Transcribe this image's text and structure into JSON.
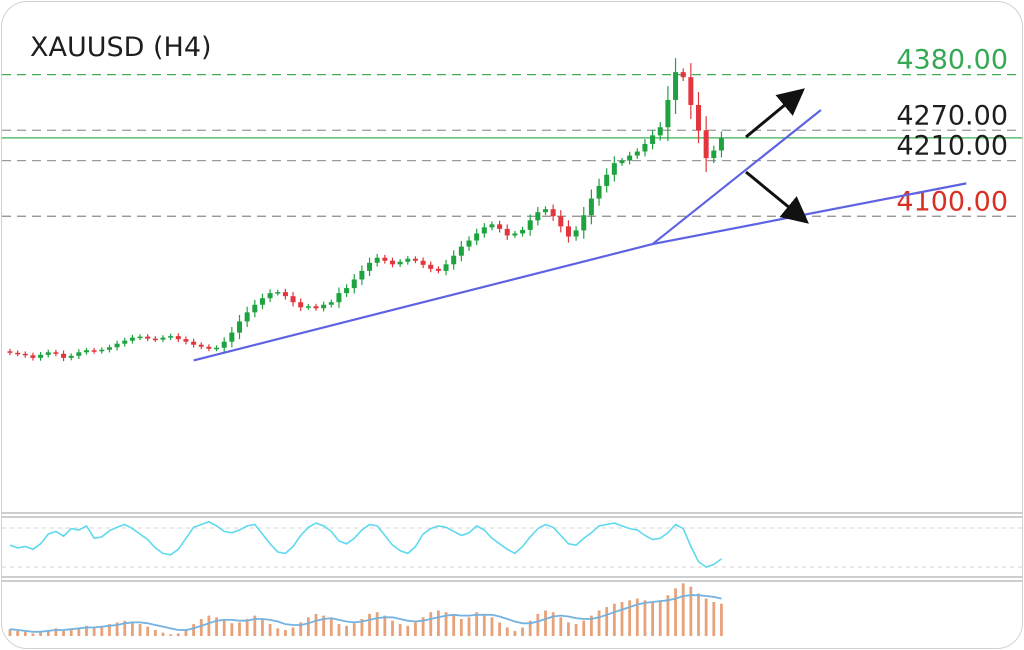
{
  "chart_data": {
    "type": "candlestick",
    "title": "XAUUSD (H4)",
    "xlabel": "",
    "ylabel": "",
    "ylim": [
      3535,
      4405
    ],
    "grid": false,
    "colors": {
      "up_candle": "#1fa341",
      "down_candle": "#e2353d",
      "trendline": "#5d63e3",
      "resistance": "#3fae55",
      "neutral_level": "#9a9a9a",
      "support": "#8b8b8b",
      "oscillator": "#5ed9ee",
      "histogram": "#e8a27a",
      "signal_line": "#74b2e0"
    },
    "levels": [
      {
        "value": 4380,
        "label": "4380.00",
        "color": "#34a853",
        "style": "dashed"
      },
      {
        "value": 4270,
        "label": "4270.00",
        "color": "#1e1e1e",
        "style": "dashed"
      },
      {
        "value": 4255,
        "label": "",
        "color": "#3fae55",
        "style": "solid"
      },
      {
        "value": 4210,
        "label": "4210.00",
        "color": "#1e1e1e",
        "style": "dashed"
      },
      {
        "value": 4100,
        "label": "4100.00",
        "color": "#d93025",
        "style": "dashed"
      }
    ],
    "trendlines": [
      {
        "from": [
          24,
          3815
        ],
        "to": [
          84,
          4045
        ]
      },
      {
        "from": [
          84,
          4045
        ],
        "to": [
          125,
          4165
        ]
      },
      {
        "from": [
          84,
          4045
        ],
        "to": [
          106,
          4310
        ]
      }
    ],
    "close": [
      3830,
      3828,
      3825,
      3820,
      3826,
      3831,
      3828,
      3820,
      3824,
      3831,
      3835,
      3833,
      3836,
      3841,
      3848,
      3854,
      3860,
      3862,
      3858,
      3856,
      3860,
      3863,
      3857,
      3852,
      3846,
      3842,
      3838,
      3840,
      3852,
      3870,
      3892,
      3910,
      3925,
      3938,
      3948,
      3950,
      3942,
      3930,
      3920,
      3922,
      3918,
      3925,
      3930,
      3948,
      3958,
      3975,
      3992,
      4008,
      4018,
      4012,
      4005,
      4010,
      4016,
      4012,
      4004,
      3996,
      3992,
      4005,
      4022,
      4040,
      4052,
      4066,
      4078,
      4084,
      4075,
      4062,
      4066,
      4073,
      4092,
      4108,
      4114,
      4100,
      4080,
      4060,
      4072,
      4102,
      4135,
      4160,
      4182,
      4205,
      4210,
      4220,
      4228,
      4243,
      4260,
      4276,
      4330,
      4385,
      4375,
      4320,
      4270,
      4215,
      4230,
      4254
    ],
    "opens_note": "each candle opens at the previous close",
    "oscillator": {
      "type": "line",
      "values": [
        42,
        38,
        40,
        36,
        44,
        58,
        62,
        55,
        66,
        64,
        70,
        52,
        54,
        63,
        68,
        72,
        66,
        58,
        50,
        38,
        30,
        28,
        36,
        52,
        68,
        72,
        76,
        70,
        62,
        60,
        64,
        70,
        72,
        58,
        44,
        32,
        30,
        40,
        56,
        68,
        74,
        70,
        62,
        48,
        44,
        52,
        64,
        72,
        70,
        56,
        42,
        34,
        30,
        40,
        58,
        66,
        70,
        68,
        62,
        56,
        60,
        70,
        64,
        52,
        44,
        36,
        30,
        40,
        54,
        66,
        72,
        68,
        56,
        44,
        42,
        52,
        60,
        70,
        72,
        74,
        70,
        66,
        64,
        56,
        50,
        52,
        60,
        72,
        66,
        40,
        18,
        10,
        14,
        22
      ]
    },
    "histogram": {
      "type": "bar",
      "values": [
        8,
        6,
        5,
        3,
        4,
        7,
        9,
        6,
        8,
        10,
        12,
        9,
        11,
        14,
        16,
        18,
        17,
        14,
        11,
        7,
        4,
        2,
        3,
        8,
        14,
        20,
        24,
        22,
        18,
        15,
        16,
        20,
        24,
        20,
        14,
        9,
        7,
        10,
        16,
        22,
        26,
        24,
        20,
        14,
        12,
        15,
        20,
        26,
        28,
        24,
        18,
        14,
        12,
        16,
        22,
        28,
        30,
        28,
        24,
        20,
        22,
        28,
        26,
        22,
        16,
        10,
        6,
        10,
        18,
        26,
        30,
        28,
        22,
        16,
        14,
        18,
        24,
        30,
        34,
        38,
        40,
        42,
        44,
        42,
        40,
        42,
        48,
        56,
        62,
        58,
        50,
        44,
        40,
        38
      ],
      "signal": [
        8,
        7,
        6,
        5,
        5,
        6,
        7,
        7,
        8,
        9,
        10,
        10,
        11,
        12,
        13,
        15,
        16,
        16,
        15,
        13,
        11,
        9,
        7,
        7,
        9,
        12,
        15,
        18,
        19,
        19,
        18,
        18,
        20,
        20,
        19,
        17,
        14,
        13,
        13,
        15,
        18,
        20,
        21,
        19,
        17,
        16,
        17,
        19,
        21,
        22,
        22,
        20,
        18,
        17,
        18,
        20,
        22,
        24,
        25,
        24,
        24,
        25,
        25,
        25,
        23,
        20,
        17,
        15,
        15,
        17,
        20,
        23,
        24,
        23,
        21,
        20,
        20,
        22,
        25,
        28,
        31,
        34,
        37,
        39,
        40,
        41,
        42,
        44,
        47,
        48,
        48,
        47,
        46,
        44
      ]
    }
  }
}
